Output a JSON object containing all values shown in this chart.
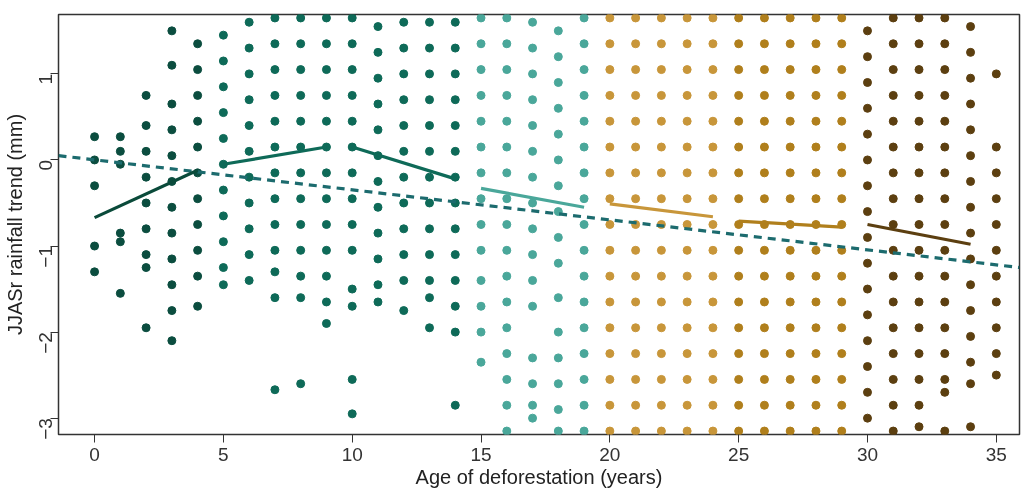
{
  "chart_data": {
    "type": "scatter",
    "xlabel": "Age of deforestation (years)",
    "ylabel": "JJASr rainfall trend (mm)",
    "xlim": [
      -1.4,
      35.9
    ],
    "ylim": [
      -3.19,
      1.69
    ],
    "xticks": [
      0,
      5,
      10,
      15,
      20,
      25,
      30,
      35
    ],
    "yticks": [
      -3,
      -2,
      -1,
      0,
      1
    ],
    "grid": false,
    "series": [
      {
        "marker": "circle",
        "color": "#0b4d3f",
        "x": [
          0,
          0,
          0,
          0,
          0,
          1,
          1,
          1,
          1,
          1,
          1,
          2,
          2,
          2,
          2,
          2,
          2,
          2,
          2,
          2,
          3,
          3,
          3,
          3,
          3,
          3,
          3,
          3,
          3,
          3,
          3,
          3,
          4,
          4,
          4,
          4,
          4,
          4,
          4,
          4,
          4,
          4,
          4
        ],
        "values": [
          0.27,
          0,
          -0.3,
          -1,
          -1.3,
          0.27,
          0.1,
          -0.05,
          -0.85,
          -0.95,
          -1.55,
          0.75,
          0.4,
          0.1,
          -0.2,
          -0.5,
          -0.8,
          -1.1,
          -1.25,
          -1.95,
          1.5,
          1.1,
          0.65,
          0.35,
          0.05,
          -0.25,
          -0.55,
          -0.85,
          -1.15,
          -1.45,
          -1.75,
          -2.1,
          1.35,
          1.05,
          0.75,
          0.45,
          0.15,
          -0.15,
          -0.45,
          -0.75,
          -1.05,
          -1.35,
          -1.7
        ]
      },
      {
        "marker": "circle",
        "color": "#0e6a58",
        "x": [
          5,
          5,
          5,
          5,
          5,
          5,
          5,
          5,
          5,
          5,
          5,
          6,
          6,
          6,
          6,
          6,
          6,
          6,
          6,
          6,
          6,
          6,
          7,
          7,
          7,
          7,
          7,
          7,
          7,
          7,
          7,
          7,
          7,
          7,
          7,
          8,
          8,
          8,
          8,
          8,
          8,
          8,
          8,
          8,
          8,
          8,
          8,
          8,
          9,
          9,
          9,
          9,
          9,
          9,
          9,
          9,
          9,
          9,
          9,
          9,
          9,
          10,
          10,
          10,
          10,
          10,
          10,
          10,
          10,
          10,
          10,
          10,
          10,
          10,
          10,
          11,
          11,
          11,
          11,
          11,
          11,
          11,
          11,
          11,
          11,
          11,
          11,
          12,
          12,
          12,
          12,
          12,
          12,
          12,
          12,
          12,
          12,
          12,
          12,
          13,
          13,
          13,
          13,
          13,
          13,
          13,
          13,
          13,
          13,
          13,
          13,
          13,
          14,
          14,
          14,
          14,
          14,
          14,
          14,
          14,
          14,
          14,
          14,
          14,
          14,
          14
        ],
        "values": [
          1.45,
          1.15,
          0.85,
          0.55,
          0.25,
          -0.05,
          -0.35,
          -0.65,
          -0.95,
          -1.25,
          -1.45,
          1.6,
          1.3,
          1.0,
          0.7,
          0.4,
          0.1,
          -0.2,
          -0.5,
          -0.8,
          -1.1,
          -1.4,
          1.65,
          1.35,
          1.05,
          0.75,
          0.45,
          0.15,
          -0.15,
          -0.45,
          -0.75,
          -1.05,
          -1.3,
          -1.6,
          -2.67,
          1.65,
          1.35,
          1.05,
          0.75,
          0.45,
          0.15,
          -0.15,
          -0.45,
          -0.75,
          -1.05,
          -1.35,
          -1.6,
          -2.6,
          1.65,
          1.35,
          1.05,
          0.75,
          0.45,
          0.15,
          -0.15,
          -0.45,
          -0.75,
          -1.05,
          -1.35,
          -1.65,
          -1.9,
          1.65,
          1.35,
          1.05,
          0.75,
          0.45,
          0.15,
          -0.15,
          -0.45,
          -0.75,
          -1.05,
          -1.5,
          -1.7,
          -2.55,
          -2.95,
          1.55,
          1.25,
          0.95,
          0.65,
          0.35,
          0.05,
          -0.25,
          -0.55,
          -0.85,
          -1.15,
          -1.45,
          -1.65,
          1.6,
          1.3,
          1.0,
          0.7,
          0.4,
          0.1,
          -0.2,
          -0.5,
          -0.8,
          -1.1,
          -1.4,
          -1.75,
          1.6,
          1.3,
          1.0,
          0.7,
          0.4,
          0.1,
          -0.2,
          -0.5,
          -0.8,
          -1.1,
          -1.4,
          -1.6,
          -1.95,
          1.6,
          1.3,
          1.0,
          0.7,
          0.4,
          0.1,
          -0.2,
          -0.5,
          -0.8,
          -1.1,
          -1.4,
          -1.7,
          -2.0,
          -2.85
        ]
      },
      {
        "marker": "circle",
        "color": "#4aa79a",
        "x": [
          15,
          15,
          15,
          15,
          15,
          15,
          15,
          15,
          15,
          15,
          15,
          15,
          15,
          15,
          16,
          16,
          16,
          16,
          16,
          16,
          16,
          16,
          16,
          16,
          16,
          16,
          16,
          16,
          16,
          16,
          16,
          17,
          17,
          17,
          17,
          17,
          17,
          17,
          17,
          17,
          17,
          17,
          17,
          17,
          17,
          17,
          17,
          18,
          18,
          18,
          18,
          18,
          18,
          18,
          18,
          18,
          18,
          18,
          18,
          18,
          18,
          18,
          18,
          19,
          19,
          19,
          19,
          19,
          19,
          19,
          19,
          19,
          19,
          19,
          19,
          19,
          19,
          19,
          19,
          19
        ],
        "values": [
          1.65,
          1.35,
          1.05,
          0.75,
          0.45,
          0.15,
          -0.15,
          -0.45,
          -0.75,
          -1.05,
          -1.4,
          -1.7,
          -2.0,
          -2.35,
          1.65,
          1.35,
          1.05,
          0.75,
          0.45,
          0.15,
          -0.15,
          -0.45,
          -0.75,
          -1.05,
          -1.35,
          -1.65,
          -1.95,
          -2.25,
          -2.55,
          -2.85,
          -3.15,
          1.6,
          1.3,
          1.0,
          0.7,
          0.4,
          0.1,
          -0.2,
          -0.5,
          -0.8,
          -1.1,
          -1.4,
          -1.7,
          -2.3,
          -2.6,
          -2.85,
          -3.0,
          1.5,
          1.2,
          0.9,
          0.6,
          0.3,
          0,
          -0.3,
          -0.6,
          -0.9,
          -1.2,
          -1.6,
          -2.0,
          -2.3,
          -2.6,
          -2.9,
          -3.15,
          1.65,
          1.35,
          1.05,
          0.75,
          0.45,
          0.15,
          -0.15,
          -0.45,
          -0.75,
          -1.05,
          -1.35,
          -1.65,
          -1.95,
          -2.25,
          -2.55,
          -2.85,
          -3.15
        ]
      },
      {
        "marker": "circle",
        "color": "#c8963a",
        "x": [
          20,
          20,
          20,
          20,
          20,
          20,
          20,
          20,
          20,
          20,
          20,
          20,
          20,
          20,
          20,
          20,
          20,
          21,
          21,
          21,
          21,
          21,
          21,
          21,
          21,
          21,
          21,
          21,
          21,
          21,
          21,
          21,
          21,
          21,
          22,
          22,
          22,
          22,
          22,
          22,
          22,
          22,
          22,
          22,
          22,
          22,
          22,
          22,
          22,
          22,
          22,
          23,
          23,
          23,
          23,
          23,
          23,
          23,
          23,
          23,
          23,
          23,
          23,
          23,
          23,
          23,
          23,
          23,
          24,
          24,
          24,
          24,
          24,
          24,
          24,
          24,
          24,
          24,
          24,
          24,
          24,
          24,
          24,
          24,
          24
        ],
        "values": [
          1.65,
          1.35,
          1.05,
          0.75,
          0.45,
          0.15,
          -0.15,
          -0.45,
          -0.75,
          -1.05,
          -1.35,
          -1.65,
          -1.95,
          -2.25,
          -2.55,
          -2.85,
          -3.15,
          1.65,
          1.35,
          1.05,
          0.75,
          0.45,
          0.15,
          -0.15,
          -0.45,
          -0.75,
          -1.05,
          -1.35,
          -1.65,
          -1.95,
          -2.25,
          -2.55,
          -2.85,
          -3.15,
          1.65,
          1.35,
          1.05,
          0.75,
          0.45,
          0.15,
          -0.15,
          -0.45,
          -0.75,
          -1.05,
          -1.35,
          -1.65,
          -1.95,
          -2.25,
          -2.55,
          -2.85,
          -3.15,
          1.65,
          1.35,
          1.05,
          0.75,
          0.45,
          0.15,
          -0.15,
          -0.45,
          -0.75,
          -1.05,
          -1.35,
          -1.65,
          -1.95,
          -2.25,
          -2.55,
          -2.85,
          -3.15,
          1.65,
          1.35,
          1.05,
          0.75,
          0.45,
          0.15,
          -0.15,
          -0.45,
          -0.75,
          -1.05,
          -1.35,
          -1.65,
          -1.95,
          -2.25,
          -2.55,
          -2.85,
          -3.15
        ]
      },
      {
        "marker": "circle",
        "color": "#b07f1c",
        "x": [
          25,
          25,
          25,
          25,
          25,
          25,
          25,
          25,
          25,
          25,
          25,
          25,
          25,
          25,
          25,
          25,
          25,
          26,
          26,
          26,
          26,
          26,
          26,
          26,
          26,
          26,
          26,
          26,
          26,
          26,
          26,
          26,
          26,
          26,
          27,
          27,
          27,
          27,
          27,
          27,
          27,
          27,
          27,
          27,
          27,
          27,
          27,
          27,
          27,
          27,
          27,
          28,
          28,
          28,
          28,
          28,
          28,
          28,
          28,
          28,
          28,
          28,
          28,
          28,
          28,
          28,
          28,
          28,
          29,
          29,
          29,
          29,
          29,
          29,
          29,
          29,
          29,
          29,
          29,
          29,
          29,
          29,
          29,
          29,
          29
        ],
        "values": [
          1.65,
          1.35,
          1.05,
          0.75,
          0.45,
          0.15,
          -0.15,
          -0.45,
          -0.75,
          -1.05,
          -1.35,
          -1.65,
          -1.95,
          -2.25,
          -2.55,
          -2.85,
          -3.15,
          1.65,
          1.35,
          1.05,
          0.75,
          0.45,
          0.15,
          -0.15,
          -0.45,
          -0.75,
          -1.05,
          -1.35,
          -1.65,
          -1.95,
          -2.25,
          -2.55,
          -2.85,
          -3.15,
          1.65,
          1.35,
          1.05,
          0.75,
          0.45,
          0.15,
          -0.15,
          -0.45,
          -0.75,
          -1.05,
          -1.35,
          -1.65,
          -1.95,
          -2.25,
          -2.55,
          -2.85,
          -3.15,
          1.65,
          1.35,
          1.05,
          0.75,
          0.45,
          0.15,
          -0.15,
          -0.45,
          -0.75,
          -1.05,
          -1.35,
          -1.65,
          -1.95,
          -2.25,
          -2.55,
          -2.85,
          -3.15,
          1.65,
          1.35,
          1.05,
          0.75,
          0.45,
          0.15,
          -0.15,
          -0.45,
          -0.75,
          -1.05,
          -1.35,
          -1.65,
          -1.95,
          -2.25,
          -2.55,
          -2.85,
          -3.15
        ]
      },
      {
        "marker": "circle",
        "color": "#5c3f10",
        "x": [
          30,
          30,
          30,
          30,
          30,
          30,
          30,
          30,
          30,
          30,
          30,
          30,
          30,
          30,
          30,
          30,
          31,
          31,
          31,
          31,
          31,
          31,
          31,
          31,
          31,
          31,
          31,
          31,
          31,
          31,
          31,
          31,
          31,
          32,
          32,
          32,
          32,
          32,
          32,
          32,
          32,
          32,
          32,
          32,
          32,
          32,
          32,
          32,
          32,
          32,
          33,
          33,
          33,
          33,
          33,
          33,
          33,
          33,
          33,
          33,
          33,
          33,
          33,
          33,
          33,
          33,
          33,
          34,
          34,
          34,
          34,
          34,
          34,
          34,
          34,
          34,
          34,
          34,
          34,
          34,
          34,
          34,
          34,
          35,
          35,
          35,
          35,
          35,
          35,
          35,
          35,
          35,
          35,
          35
        ],
        "values": [
          1.5,
          1.2,
          0.9,
          0.6,
          0.3,
          0,
          -0.3,
          -0.6,
          -0.9,
          -1.2,
          -1.5,
          -1.8,
          -2.1,
          -2.4,
          -2.7,
          -3.0,
          1.65,
          1.35,
          1.05,
          0.75,
          0.45,
          0.15,
          -0.15,
          -0.45,
          -0.75,
          -1.05,
          -1.35,
          -1.65,
          -1.95,
          -2.25,
          -2.55,
          -2.85,
          -3.15,
          1.65,
          1.35,
          1.05,
          0.75,
          0.45,
          0.15,
          -0.15,
          -0.45,
          -0.75,
          -1.05,
          -1.35,
          -1.65,
          -1.95,
          -2.25,
          -2.55,
          -2.85,
          -3.1,
          1.65,
          1.35,
          1.05,
          0.75,
          0.45,
          0.15,
          -0.15,
          -0.45,
          -0.75,
          -1.05,
          -1.35,
          -1.65,
          -1.95,
          -2.25,
          -2.55,
          -2.7,
          -3.15,
          1.55,
          1.25,
          0.95,
          0.65,
          0.35,
          0.05,
          -0.25,
          -0.55,
          -0.85,
          -1.15,
          -1.45,
          -1.75,
          -2.05,
          -2.35,
          -2.6,
          -3.1,
          1.0,
          0.15,
          -0.15,
          -0.45,
          -0.75,
          -1.05,
          -1.35,
          -1.65,
          -1.95,
          -2.25,
          -2.5
        ]
      },
      {
        "type": "line",
        "line_style": "dashed",
        "color": "#1c6b6e",
        "x": [
          -1.4,
          35.9
        ],
        "values": [
          0.05,
          -1.25
        ]
      },
      {
        "type": "line",
        "line_style": "solid",
        "color": "#0a4a3a",
        "x": [
          0,
          4
        ],
        "values": [
          -0.67,
          -0.12
        ]
      },
      {
        "type": "line",
        "line_style": "solid",
        "color": "#0e6a58",
        "x": [
          5,
          9
        ],
        "values": [
          -0.05,
          0.15
        ]
      },
      {
        "type": "line",
        "line_style": "solid",
        "color": "#0e6a58",
        "x": [
          10,
          14
        ],
        "values": [
          0.15,
          -0.22
        ]
      },
      {
        "type": "line",
        "line_style": "solid",
        "color": "#4aa79a",
        "x": [
          15,
          19
        ],
        "values": [
          -0.33,
          -0.55
        ]
      },
      {
        "type": "line",
        "line_style": "solid",
        "color": "#c8963a",
        "x": [
          20,
          24
        ],
        "values": [
          -0.51,
          -0.66
        ]
      },
      {
        "type": "line",
        "line_style": "solid",
        "color": "#b07f1c",
        "x": [
          25,
          29
        ],
        "values": [
          -0.71,
          -0.78
        ]
      },
      {
        "type": "line",
        "line_style": "solid",
        "color": "#5c3f10",
        "x": [
          30,
          34
        ],
        "values": [
          -0.75,
          -0.98
        ]
      }
    ]
  }
}
